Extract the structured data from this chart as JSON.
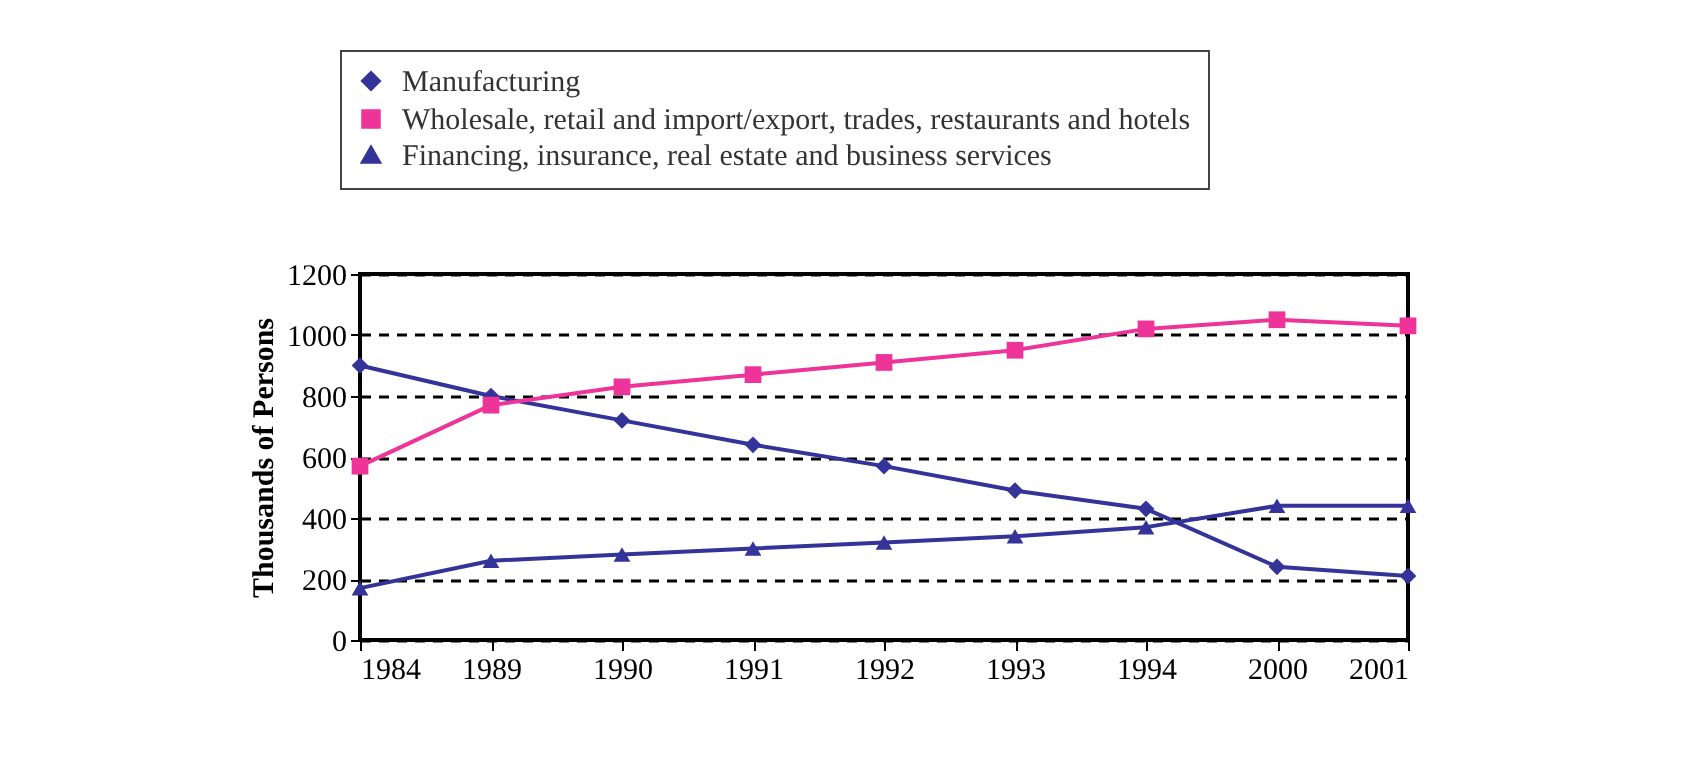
{
  "chart_data": {
    "type": "line",
    "ylabel": "Thousands of Persons",
    "categories": [
      "1984",
      "1989",
      "1990",
      "1991",
      "1992",
      "1993",
      "1994",
      "2000",
      "2001"
    ],
    "series": [
      {
        "name": "Manufacturing",
        "color": "#333399",
        "marker": "diamond",
        "values": [
          900,
          800,
          720,
          640,
          570,
          490,
          430,
          240,
          210
        ]
      },
      {
        "name": "Wholesale, retail and import/export, trades, restaurants and hotels",
        "color": "#ee3399",
        "marker": "square",
        "values": [
          570,
          770,
          830,
          870,
          910,
          950,
          1020,
          1050,
          1030
        ]
      },
      {
        "name": "Financing, insurance, real estate and business services",
        "color": "#333399",
        "marker": "triangle",
        "values": [
          170,
          260,
          280,
          300,
          320,
          340,
          370,
          440,
          440
        ]
      }
    ],
    "ylim": [
      0,
      1200
    ],
    "yticks": [
      0,
      200,
      400,
      600,
      800,
      1000,
      1200
    ],
    "grid": "y",
    "line_style": "solid",
    "legend": "top"
  }
}
